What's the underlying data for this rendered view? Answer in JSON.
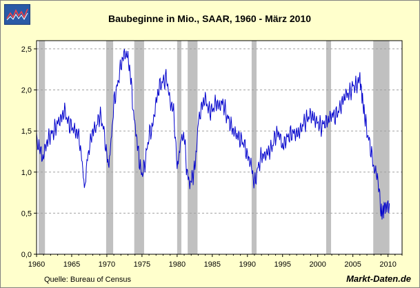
{
  "chart_data": {
    "type": "line",
    "title": "Baubeginne in Mio., SAAR, 1960 - März 2010",
    "source": "Quelle: Bureau of Census",
    "brand": "Markt-Daten.de",
    "xlabel": "",
    "ylabel": "",
    "xlim": [
      1960,
      2012
    ],
    "ylim": [
      0,
      2.6
    ],
    "x_ticks": [
      1960,
      1965,
      1970,
      1975,
      1980,
      1985,
      1990,
      1995,
      2000,
      2005,
      2010
    ],
    "x_tick_labels": [
      "1960",
      "1965",
      "1970",
      "1975",
      "1980",
      "1985",
      "1990",
      "1995",
      "2000",
      "2005",
      "2010"
    ],
    "y_ticks": [
      0,
      0.5,
      1.0,
      1.5,
      2.0,
      2.5
    ],
    "y_tick_labels": [
      "0,0",
      "0,5",
      "1,0",
      "1,5",
      "2,0",
      "2,5"
    ],
    "grid": true,
    "colors": {
      "background": "#ffffcc",
      "plot_background": "#ffffff",
      "grid": "#a0a0a0",
      "recession": "#c0c0c0",
      "line": "#0000cc",
      "axis": "#000000"
    },
    "recessions": [
      {
        "start": 1960.3,
        "end": 1961.2
      },
      {
        "start": 1969.9,
        "end": 1970.9
      },
      {
        "start": 1973.9,
        "end": 1975.3
      },
      {
        "start": 1980.0,
        "end": 1980.6
      },
      {
        "start": 1981.5,
        "end": 1982.9
      },
      {
        "start": 1990.6,
        "end": 1991.3
      },
      {
        "start": 2001.2,
        "end": 2001.9
      },
      {
        "start": 2007.9,
        "end": 2010.2
      }
    ],
    "series": [
      {
        "name": "Baubeginne",
        "x": [
          1960.0,
          1960.25,
          1960.5,
          1960.75,
          1961.0,
          1961.25,
          1961.5,
          1961.75,
          1962.0,
          1962.5,
          1963.0,
          1963.5,
          1964.0,
          1964.5,
          1965.0,
          1965.5,
          1966.0,
          1966.5,
          1966.8,
          1967.0,
          1967.5,
          1968.0,
          1968.5,
          1969.0,
          1969.5,
          1970.0,
          1970.3,
          1970.6,
          1971.0,
          1971.5,
          1972.0,
          1972.5,
          1973.0,
          1973.4,
          1973.8,
          1974.2,
          1974.6,
          1975.0,
          1975.5,
          1976.0,
          1976.5,
          1977.0,
          1977.5,
          1978.0,
          1978.5,
          1979.0,
          1979.5,
          1980.0,
          1980.3,
          1980.6,
          1981.0,
          1981.4,
          1981.8,
          1982.2,
          1982.6,
          1983.0,
          1983.5,
          1984.0,
          1984.5,
          1985.0,
          1985.5,
          1986.0,
          1986.5,
          1987.0,
          1987.5,
          1988.0,
          1988.5,
          1989.0,
          1989.5,
          1990.0,
          1990.5,
          1991.0,
          1991.5,
          1992.0,
          1992.5,
          1993.0,
          1993.5,
          1994.0,
          1994.5,
          1995.0,
          1995.5,
          1996.0,
          1996.5,
          1997.0,
          1997.5,
          1998.0,
          1998.5,
          1999.0,
          1999.5,
          2000.0,
          2000.5,
          2001.0,
          2001.5,
          2002.0,
          2002.5,
          2003.0,
          2003.5,
          2004.0,
          2004.5,
          2005.0,
          2005.5,
          2006.0,
          2006.3,
          2006.6,
          2007.0,
          2007.5,
          2008.0,
          2008.5,
          2009.0,
          2009.3,
          2009.6,
          2010.0,
          2010.2
        ],
        "values": [
          1.48,
          1.25,
          1.35,
          1.15,
          1.2,
          1.3,
          1.36,
          1.42,
          1.45,
          1.5,
          1.6,
          1.65,
          1.75,
          1.6,
          1.55,
          1.5,
          1.45,
          1.1,
          0.85,
          1.0,
          1.3,
          1.5,
          1.55,
          1.7,
          1.55,
          1.2,
          1.1,
          1.35,
          1.85,
          2.05,
          2.3,
          2.45,
          2.4,
          2.15,
          1.7,
          1.45,
          1.15,
          0.95,
          1.15,
          1.45,
          1.55,
          1.85,
          2.05,
          2.1,
          2.15,
          1.85,
          1.75,
          1.05,
          1.25,
          1.4,
          1.45,
          1.0,
          0.85,
          0.95,
          1.1,
          1.6,
          1.8,
          1.9,
          1.75,
          1.75,
          1.85,
          1.8,
          1.85,
          1.7,
          1.6,
          1.5,
          1.45,
          1.4,
          1.35,
          1.2,
          1.1,
          0.85,
          1.05,
          1.2,
          1.2,
          1.25,
          1.3,
          1.45,
          1.48,
          1.3,
          1.4,
          1.45,
          1.48,
          1.46,
          1.5,
          1.6,
          1.65,
          1.7,
          1.65,
          1.6,
          1.55,
          1.6,
          1.63,
          1.7,
          1.68,
          1.75,
          1.85,
          1.95,
          1.95,
          2.05,
          2.05,
          2.15,
          1.9,
          1.75,
          1.5,
          1.3,
          1.05,
          0.95,
          0.55,
          0.5,
          0.58,
          0.6,
          0.62
        ]
      }
    ]
  }
}
